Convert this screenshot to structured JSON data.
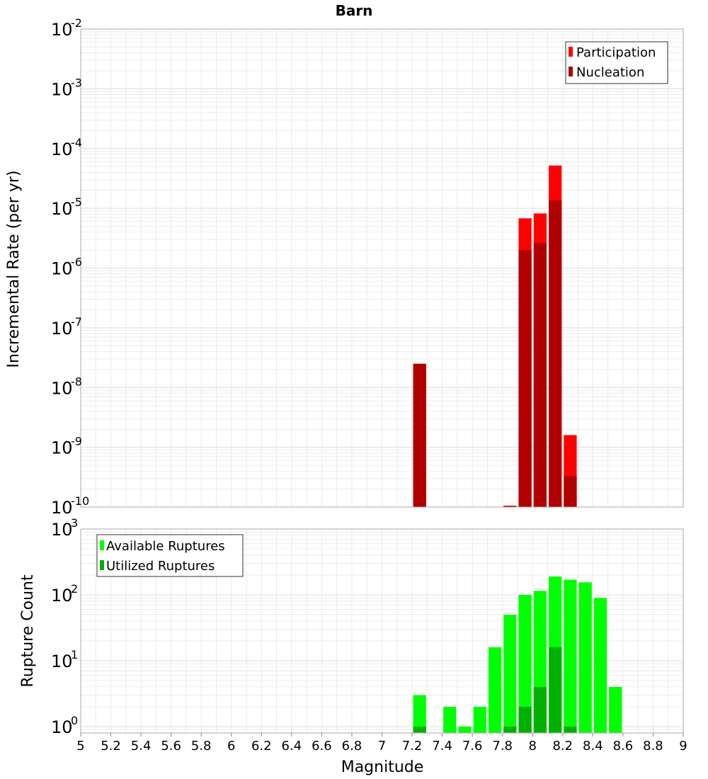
{
  "chart_data": [
    {
      "type": "bar",
      "title": "Barn",
      "xlabel": "",
      "ylabel": "Incremental Rate (per yr)",
      "yscale": "log",
      "ylim": [
        1e-10,
        0.01
      ],
      "xlim": [
        5,
        9
      ],
      "ytick_bases": [
        "10",
        "10",
        "10",
        "10",
        "10",
        "10",
        "10",
        "10",
        "10"
      ],
      "ytick_exps": [
        "-2",
        "-3",
        "-4",
        "-5",
        "-6",
        "-7",
        "-8",
        "-9",
        "-10"
      ],
      "ytick_values": [
        0.01,
        0.001,
        0.0001,
        1e-05,
        1e-06,
        1e-07,
        1e-08,
        1e-09,
        1e-10
      ],
      "legend": {
        "placement": "top-right",
        "entries": [
          "Participation",
          "Nucleation"
        ]
      },
      "bin_width": 0.1,
      "series": [
        {
          "name": "Participation",
          "color": "#ff0000",
          "x": [
            7.25,
            7.85,
            7.95,
            8.05,
            8.15,
            8.25
          ],
          "values": [
            2.5e-08,
            1.05e-10,
            6.8e-06,
            8.2e-06,
            5.2e-05,
            1.6e-09
          ]
        },
        {
          "name": "Nucleation",
          "color": "#b00000",
          "x": [
            7.25,
            7.85,
            7.95,
            8.05,
            8.15,
            8.25
          ],
          "values": [
            2.5e-08,
            1.05e-10,
            2e-06,
            2.6e-06,
            1.35e-05,
            3.3e-10
          ]
        }
      ],
      "grid": true
    },
    {
      "type": "bar",
      "title": "",
      "xlabel": "Magnitude",
      "ylabel": "Rupture Count",
      "yscale": "log",
      "ylim": [
        0.8,
        1000
      ],
      "xlim": [
        5,
        9
      ],
      "xticks": [
        "5",
        "5.2",
        "5.4",
        "5.6",
        "5.8",
        "6",
        "6.2",
        "6.4",
        "6.6",
        "6.8",
        "7",
        "7.2",
        "7.4",
        "7.6",
        "7.8",
        "8",
        "8.2",
        "8.4",
        "8.6",
        "8.8",
        "9"
      ],
      "ytick_bases": [
        "10",
        "10",
        "10",
        "10"
      ],
      "ytick_exps": [
        "3",
        "2",
        "1",
        "0"
      ],
      "ytick_values": [
        1000,
        100,
        10,
        1
      ],
      "legend": {
        "placement": "top-left",
        "entries": [
          "Available Ruptures",
          "Utilized Ruptures"
        ]
      },
      "bin_width": 0.1,
      "series": [
        {
          "name": "Available Ruptures",
          "color": "#00ff00",
          "x": [
            7.25,
            7.45,
            7.55,
            7.65,
            7.75,
            7.85,
            7.95,
            8.05,
            8.15,
            8.25,
            8.35,
            8.45,
            8.55
          ],
          "values": [
            3,
            2,
            1,
            2,
            16,
            50,
            100,
            115,
            190,
            170,
            155,
            90,
            4
          ]
        },
        {
          "name": "Utilized Ruptures",
          "color": "#00b000",
          "x": [
            7.25,
            7.85,
            7.95,
            8.05,
            8.15,
            8.25
          ],
          "values": [
            1,
            1,
            2,
            4,
            16,
            1
          ]
        }
      ],
      "grid": true
    }
  ]
}
